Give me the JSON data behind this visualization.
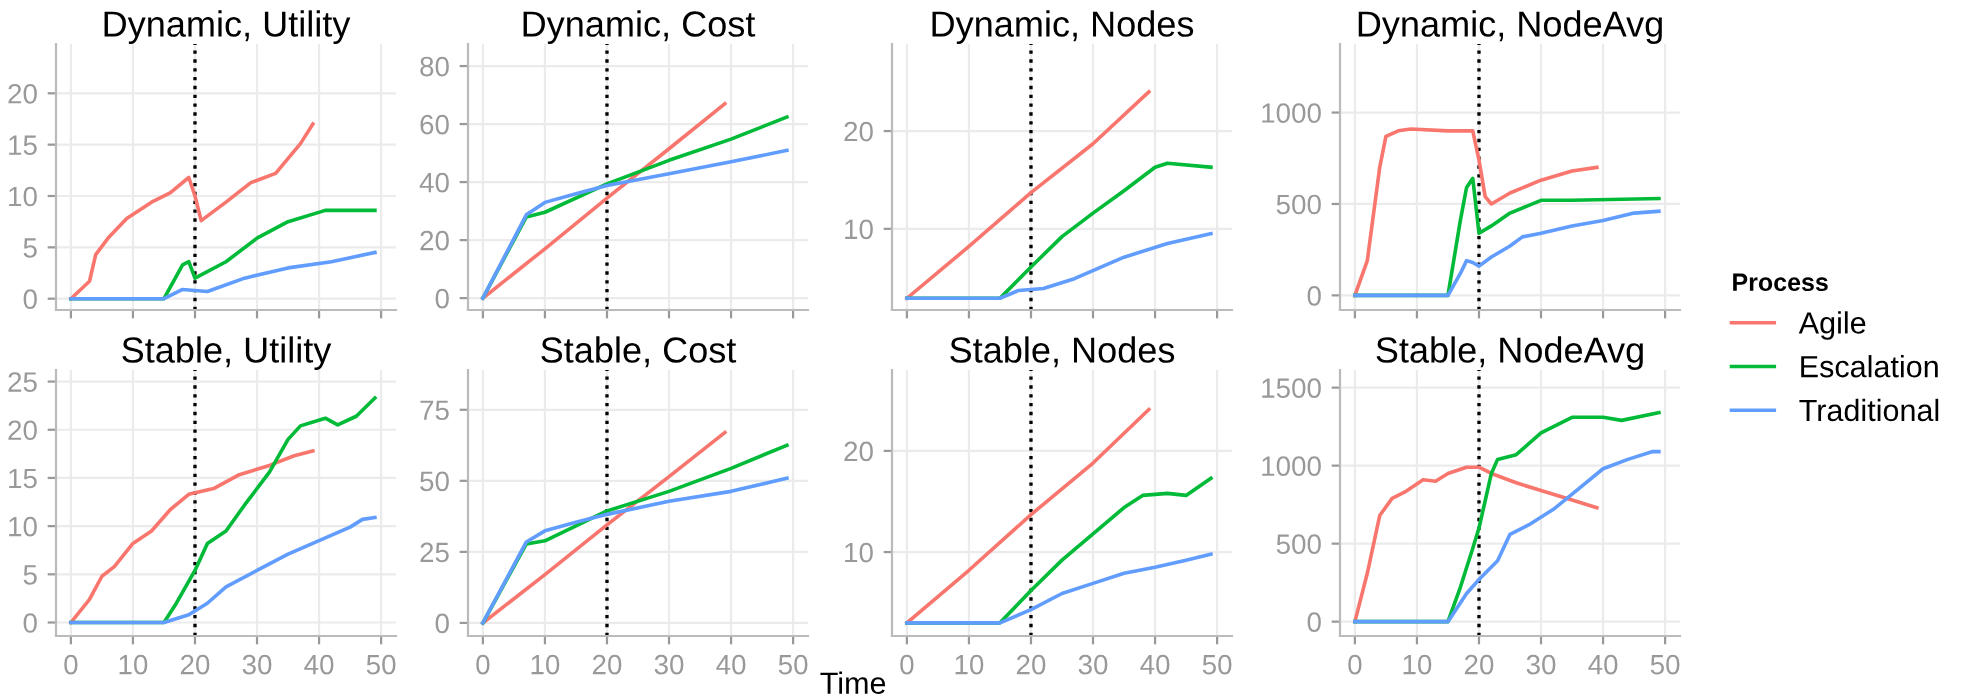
{
  "chart_data": [
    {
      "type": "line",
      "title": "Dynamic, Utility",
      "xlim": [
        -2.4,
        52.4
      ],
      "xticks": [
        0,
        10,
        20,
        30,
        40,
        50
      ],
      "ylim": [
        -1.1,
        24.8
      ],
      "yticks": [
        0,
        5,
        10,
        15,
        20
      ],
      "tick_labels": "y",
      "grid": true,
      "legend": "right",
      "legend_title": "Process",
      "ref_lines": [
        {
          "axis": "x",
          "value": 20,
          "color": "#000000",
          "line_style": "dotted"
        }
      ],
      "series": [
        {
          "name": "Agile",
          "color": "#f8766d",
          "x": [
            0,
            3,
            4,
            6,
            9,
            13,
            16,
            19,
            20,
            21,
            25,
            29,
            33,
            37,
            39
          ],
          "values": [
            0,
            1.7,
            4.3,
            5.9,
            7.8,
            9.4,
            10.3,
            11.8,
            10,
            7.6,
            9.4,
            11.3,
            12.2,
            15.1,
            17.0
          ]
        },
        {
          "name": "Escalation",
          "color": "#00ba38",
          "x": [
            0,
            15,
            16,
            18,
            19,
            20,
            25,
            30,
            35,
            41,
            49
          ],
          "values": [
            0,
            0,
            1.1,
            3.3,
            3.6,
            2.0,
            3.6,
            5.9,
            7.5,
            8.6,
            8.6
          ]
        },
        {
          "name": "Traditional",
          "color": "#619cff",
          "x": [
            0,
            15,
            18,
            22,
            28,
            35,
            42,
            49
          ],
          "values": [
            0,
            0,
            0.9,
            0.7,
            2.0,
            3.0,
            3.6,
            4.5
          ]
        }
      ]
    },
    {
      "type": "line",
      "title": "Dynamic, Cost",
      "xlim": [
        -2.4,
        52.4
      ],
      "xticks": [
        0,
        10,
        20,
        30,
        40,
        50
      ],
      "ylim": [
        -4.1,
        87.6
      ],
      "yticks": [
        0,
        20,
        40,
        60,
        80
      ],
      "tick_labels": "y",
      "grid": true,
      "ref_lines": [
        {
          "axis": "x",
          "value": 20,
          "color": "#000000",
          "line_style": "dotted"
        }
      ],
      "series": [
        {
          "color": "#f8766d",
          "x": [
            0,
            10,
            20,
            30,
            39
          ],
          "values": [
            0,
            17,
            34.5,
            51.5,
            67
          ]
        },
        {
          "color": "#00ba38",
          "x": [
            0,
            7,
            10,
            20,
            30,
            40,
            49
          ],
          "values": [
            0,
            28,
            29.6,
            39.4,
            47.5,
            54.8,
            62.4
          ]
        },
        {
          "color": "#619cff",
          "x": [
            0,
            7,
            10,
            15,
            20,
            30,
            40,
            49
          ],
          "values": [
            0,
            28.7,
            33,
            36,
            38.8,
            42.9,
            47,
            50.9
          ]
        }
      ]
    },
    {
      "type": "line",
      "title": "Dynamic, Nodes",
      "xlim": [
        -2.4,
        52.4
      ],
      "xticks": [
        0,
        10,
        20,
        30,
        40,
        50
      ],
      "ylim": [
        1.7,
        28.9
      ],
      "yticks": [
        10,
        20
      ],
      "tick_labels": "y",
      "grid": true,
      "ref_lines": [
        {
          "axis": "x",
          "value": 20,
          "color": "#000000",
          "line_style": "dotted"
        }
      ],
      "series": [
        {
          "color": "#f8766d",
          "x": [
            0,
            10,
            20,
            30,
            39
          ],
          "values": [
            2.9,
            8.2,
            13.7,
            18.7,
            24.0
          ]
        },
        {
          "color": "#00ba38",
          "x": [
            0,
            15,
            20,
            25,
            30,
            35,
            40,
            42,
            49
          ],
          "values": [
            2.9,
            2.9,
            6.1,
            9.2,
            11.6,
            13.9,
            16.3,
            16.7,
            16.3
          ]
        },
        {
          "color": "#619cff",
          "x": [
            0,
            15,
            18,
            22,
            27,
            35,
            42,
            49
          ],
          "values": [
            2.9,
            2.9,
            3.7,
            3.9,
            4.9,
            7.1,
            8.5,
            9.5
          ]
        }
      ]
    },
    {
      "type": "line",
      "title": "Dynamic, NodeAvg",
      "xlim": [
        -2.4,
        52.4
      ],
      "xticks": [
        0,
        10,
        20,
        30,
        40,
        50
      ],
      "ylim": [
        -80,
        1375
      ],
      "yticks": [
        0,
        500,
        1000
      ],
      "tick_labels": "y",
      "grid": true,
      "ref_lines": [
        {
          "axis": "x",
          "value": 20,
          "color": "#000000",
          "line_style": "dotted"
        }
      ],
      "series": [
        {
          "color": "#f8766d",
          "x": [
            0,
            2,
            4,
            5,
            7,
            9,
            15,
            19,
            20,
            21,
            22,
            25,
            30,
            35,
            39
          ],
          "values": [
            0,
            190,
            700,
            870,
            900,
            910,
            900,
            900,
            740,
            540,
            500,
            560,
            630,
            680,
            700
          ]
        },
        {
          "color": "#00ba38",
          "x": [
            0,
            15,
            17,
            18,
            19,
            20,
            22,
            25,
            30,
            35,
            49
          ],
          "values": [
            0,
            0,
            410,
            590,
            640,
            340,
            380,
            450,
            520,
            520,
            530
          ]
        },
        {
          "color": "#619cff",
          "x": [
            0,
            15,
            17,
            18,
            19,
            20,
            22,
            25,
            27,
            30,
            35,
            40,
            45,
            49
          ],
          "values": [
            0,
            0,
            120,
            190,
            180,
            160,
            210,
            270,
            320,
            340,
            380,
            410,
            450,
            460
          ]
        }
      ]
    },
    {
      "type": "line",
      "title": "Stable, Utility",
      "xlim": [
        -2.4,
        52.4
      ],
      "xticks": [
        0,
        10,
        20,
        30,
        40,
        50
      ],
      "ylim": [
        -1.4,
        26.2
      ],
      "yticks": [
        0,
        5,
        10,
        15,
        20,
        25
      ],
      "grid": true,
      "ref_lines": [
        {
          "axis": "x",
          "value": 20,
          "color": "#000000",
          "line_style": "dotted"
        }
      ],
      "series": [
        {
          "color": "#f8766d",
          "x": [
            0,
            3,
            5,
            7,
            10,
            13,
            16,
            19,
            23,
            27,
            32,
            36,
            39
          ],
          "values": [
            0,
            2.4,
            4.8,
            5.8,
            8.2,
            9.5,
            11.7,
            13.3,
            13.9,
            15.3,
            16.3,
            17.3,
            17.8
          ]
        },
        {
          "color": "#00ba38",
          "x": [
            0,
            15,
            17,
            20,
            22,
            25,
            28,
            32,
            35,
            37,
            41,
            43,
            46,
            49
          ],
          "values": [
            0,
            0,
            2.0,
            5.4,
            8.2,
            9.5,
            12.2,
            15.6,
            19.0,
            20.4,
            21.2,
            20.5,
            21.4,
            23.3
          ]
        },
        {
          "color": "#619cff",
          "x": [
            0,
            15,
            19,
            22,
            25,
            30,
            35,
            40,
            45,
            47,
            49
          ],
          "values": [
            0,
            0,
            0.8,
            2.0,
            3.7,
            5.4,
            7.1,
            8.5,
            9.9,
            10.7,
            10.9
          ]
        }
      ]
    },
    {
      "type": "line",
      "title": "Stable, Cost",
      "xlabel": "Time",
      "xlim": [
        -2.4,
        52.4
      ],
      "xticks": [
        0,
        10,
        20,
        30,
        40,
        50
      ],
      "ylim": [
        -4.6,
        89
      ],
      "yticks": [
        0,
        25,
        50,
        75
      ],
      "grid": true,
      "ref_lines": [
        {
          "axis": "x",
          "value": 20,
          "color": "#000000",
          "line_style": "dotted"
        }
      ],
      "series": [
        {
          "color": "#f8766d",
          "x": [
            0,
            10,
            20,
            30,
            39
          ],
          "values": [
            0,
            17,
            34.5,
            51.5,
            67
          ]
        },
        {
          "color": "#00ba38",
          "x": [
            0,
            7,
            10,
            20,
            30,
            40,
            49
          ],
          "values": [
            0,
            27.8,
            28.9,
            39.4,
            46.3,
            54.4,
            62.5
          ]
        },
        {
          "color": "#619cff",
          "x": [
            0,
            7,
            10,
            15,
            20,
            30,
            40,
            49
          ],
          "values": [
            0,
            28.5,
            32.4,
            35.4,
            38.2,
            42.8,
            46.3,
            50.9
          ]
        }
      ]
    },
    {
      "type": "line",
      "title": "Stable, Nodes",
      "xlim": [
        -2.4,
        52.4
      ],
      "xticks": [
        0,
        10,
        20,
        30,
        40,
        50
      ],
      "ylim": [
        1.7,
        28.0
      ],
      "yticks": [
        10,
        20
      ],
      "grid": true,
      "ref_lines": [
        {
          "axis": "x",
          "value": 20,
          "color": "#000000",
          "line_style": "dotted"
        }
      ],
      "series": [
        {
          "color": "#f8766d",
          "x": [
            0,
            10,
            20,
            30,
            39
          ],
          "values": [
            3.0,
            8.2,
            13.7,
            18.8,
            24.1
          ]
        },
        {
          "color": "#00ba38",
          "x": [
            0,
            15,
            20,
            25,
            30,
            35,
            38,
            42,
            45,
            49
          ],
          "values": [
            3.0,
            3.0,
            6.2,
            9.2,
            11.8,
            14.4,
            15.6,
            15.8,
            15.6,
            17.3
          ]
        },
        {
          "color": "#619cff",
          "x": [
            0,
            15,
            20,
            25,
            30,
            35,
            40,
            45,
            49
          ],
          "values": [
            3.0,
            3.0,
            4.3,
            5.9,
            6.9,
            7.9,
            8.5,
            9.2,
            9.8
          ]
        }
      ]
    },
    {
      "type": "line",
      "title": "Stable, NodeAvg",
      "xlim": [
        -2.4,
        52.4
      ],
      "xticks": [
        0,
        10,
        20,
        30,
        40,
        50
      ],
      "ylim": [
        -92,
        1613
      ],
      "yticks": [
        0,
        500,
        1000,
        1500
      ],
      "grid": true,
      "ref_lines": [
        {
          "axis": "x",
          "value": 20,
          "color": "#000000",
          "line_style": "dotted"
        }
      ],
      "series": [
        {
          "color": "#f8766d",
          "x": [
            0,
            2,
            4,
            6,
            8,
            11,
            13,
            15,
            18,
            20,
            22,
            26,
            30,
            35,
            39
          ],
          "values": [
            0,
            310,
            680,
            790,
            830,
            910,
            900,
            950,
            990,
            990,
            950,
            890,
            840,
            780,
            730
          ]
        },
        {
          "color": "#00ba38",
          "x": [
            0,
            15,
            17,
            19,
            20,
            22,
            23,
            26,
            30,
            35,
            40,
            43,
            49
          ],
          "values": [
            0,
            0,
            220,
            470,
            600,
            950,
            1040,
            1070,
            1210,
            1310,
            1310,
            1290,
            1340
          ]
        },
        {
          "color": "#619cff",
          "x": [
            0,
            15,
            18,
            20,
            23,
            25,
            28,
            32,
            36,
            40,
            44,
            48,
            49
          ],
          "values": [
            0,
            0,
            180,
            270,
            390,
            560,
            620,
            720,
            850,
            980,
            1040,
            1090,
            1090
          ]
        }
      ]
    }
  ]
}
